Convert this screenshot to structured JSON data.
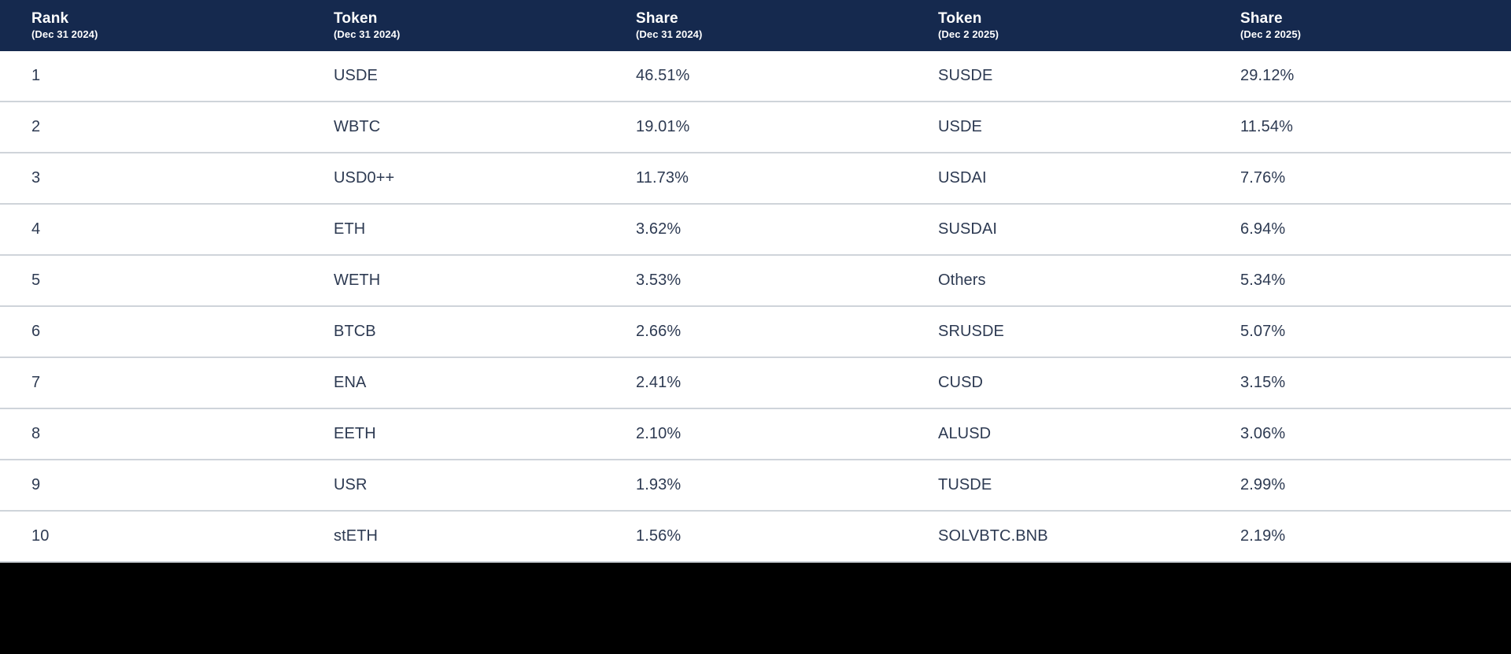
{
  "chart_data": {
    "type": "table",
    "columns": [
      {
        "label": "Rank",
        "sublabel": "(Dec 31 2024)"
      },
      {
        "label": "Token",
        "sublabel": "(Dec 31 2024)"
      },
      {
        "label": "Share",
        "sublabel": "(Dec 31 2024)"
      },
      {
        "label": "Token",
        "sublabel": "(Dec 2 2025)"
      },
      {
        "label": "Share",
        "sublabel": "(Dec 2 2025)"
      }
    ],
    "rows": [
      {
        "rank": "1",
        "token_dec31_2024": "USDE",
        "share_dec31_2024": "46.51%",
        "token_dec2_2025": "SUSDE",
        "share_dec2_2025": "29.12%"
      },
      {
        "rank": "2",
        "token_dec31_2024": "WBTC",
        "share_dec31_2024": "19.01%",
        "token_dec2_2025": "USDE",
        "share_dec2_2025": "11.54%"
      },
      {
        "rank": "3",
        "token_dec31_2024": "USD0++",
        "share_dec31_2024": "11.73%",
        "token_dec2_2025": "USDAI",
        "share_dec2_2025": "7.76%"
      },
      {
        "rank": "4",
        "token_dec31_2024": "ETH",
        "share_dec31_2024": "3.62%",
        "token_dec2_2025": "SUSDAI",
        "share_dec2_2025": "6.94%"
      },
      {
        "rank": "5",
        "token_dec31_2024": "WETH",
        "share_dec31_2024": "3.53%",
        "token_dec2_2025": "Others",
        "share_dec2_2025": "5.34%"
      },
      {
        "rank": "6",
        "token_dec31_2024": "BTCB",
        "share_dec31_2024": "2.66%",
        "token_dec2_2025": "SRUSDE",
        "share_dec2_2025": "5.07%"
      },
      {
        "rank": "7",
        "token_dec31_2024": "ENA",
        "share_dec31_2024": "2.41%",
        "token_dec2_2025": "CUSD",
        "share_dec2_2025": "3.15%"
      },
      {
        "rank": "8",
        "token_dec31_2024": "EETH",
        "share_dec31_2024": "2.10%",
        "token_dec2_2025": "ALUSD",
        "share_dec2_2025": "3.06%"
      },
      {
        "rank": "9",
        "token_dec31_2024": "USR",
        "share_dec31_2024": "1.93%",
        "token_dec2_2025": "TUSDE",
        "share_dec2_2025": "2.99%"
      },
      {
        "rank": "10",
        "token_dec31_2024": "stETH",
        "share_dec31_2024": "1.56%",
        "token_dec2_2025": "SOLVBTC.BNB",
        "share_dec2_2025": "2.19%"
      }
    ],
    "layout": {
      "header_background": "#15294E",
      "header_text_color": "#FFFFFF",
      "cell_text_color": "#2D3A52",
      "row_border_color": "#CFD4DA",
      "footer_bar_color": "#000000"
    }
  }
}
